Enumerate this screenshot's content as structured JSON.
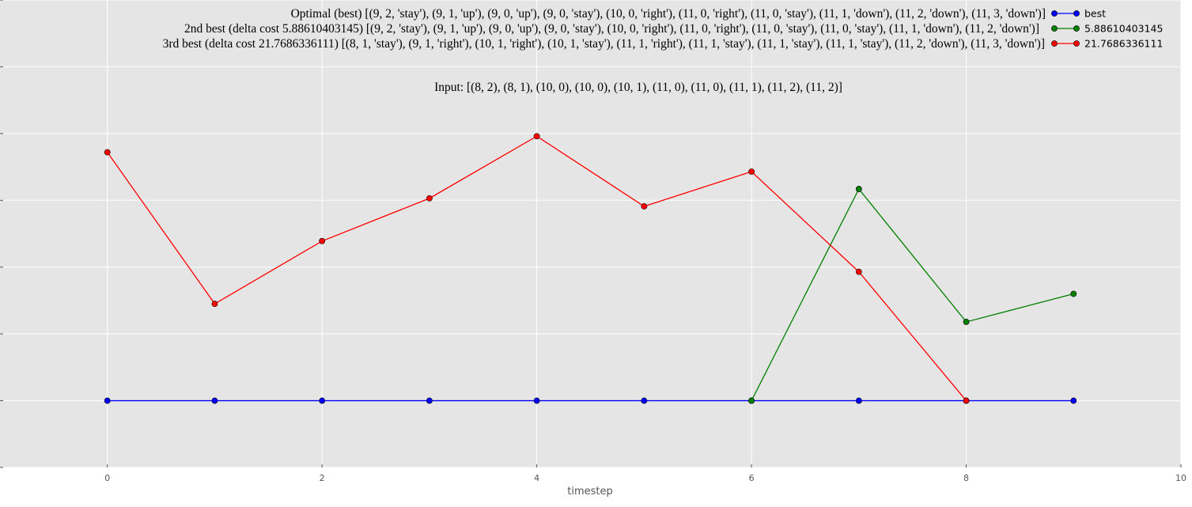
{
  "chart_data": {
    "type": "line",
    "title_lines": [
      "Optimal (best) [(9, 2, 'stay'), (9, 1, 'up'), (9, 0, 'up'), (9, 0, 'stay'), (10, 0, 'right'), (11, 0, 'right'), (11, 0, 'stay'), (11, 1, 'down'), (11, 2, 'down'), (11, 3, 'down')]",
      "2nd best (delta cost 5.88610403145) [(9, 2, 'stay'), (9, 1, 'up'), (9, 0, 'up'), (9, 0, 'stay'), (10, 0, 'right'), (11, 0, 'right'), (11, 0, 'stay'), (11, 0, 'stay'), (11, 1, 'down'), (11, 2, 'down')]",
      "3rd best (delta cost 21.7686336111) [(8, 1, 'stay'), (9, 1, 'right'), (10, 1, 'right'), (10, 1, 'stay'), (11, 1, 'right'), (11, 1, 'stay'), (11, 1, 'stay'), (11, 1, 'stay'), (11, 2, 'down'), (11, 3, 'down')]"
    ],
    "annotation": "Input: [(8, 2), (8, 1), (10, 0), (10, 0), (10, 1), (11, 0), (11, 0), (11, 1), (11, 2), (11, 2)]",
    "xlabel": "timestep",
    "ylabel": "",
    "xlim": [
      -1,
      10
    ],
    "ylim": [
      -0.1,
      0.6
    ],
    "xticks": [
      0,
      2,
      4,
      6,
      8,
      10
    ],
    "grid": true,
    "legend_position": "top-right",
    "series": [
      {
        "name": "best",
        "color": "#0000ff",
        "x": [
          0,
          1,
          2,
          3,
          4,
          5,
          6,
          7,
          8,
          9
        ],
        "y": [
          0,
          0,
          0,
          0,
          0,
          0,
          0,
          0,
          0,
          0
        ]
      },
      {
        "name": "5.88610403145",
        "color": "#008000",
        "x": [
          6,
          7,
          8,
          9
        ],
        "y": [
          0,
          0.317,
          0.118,
          0.16
        ]
      },
      {
        "name": "21.7686336111",
        "color": "#ff0000",
        "x": [
          0,
          1,
          2,
          3,
          4,
          5,
          6,
          7,
          8
        ],
        "y": [
          0.372,
          0.145,
          0.239,
          0.303,
          0.396,
          0.291,
          0.343,
          0.193,
          0
        ]
      }
    ]
  }
}
